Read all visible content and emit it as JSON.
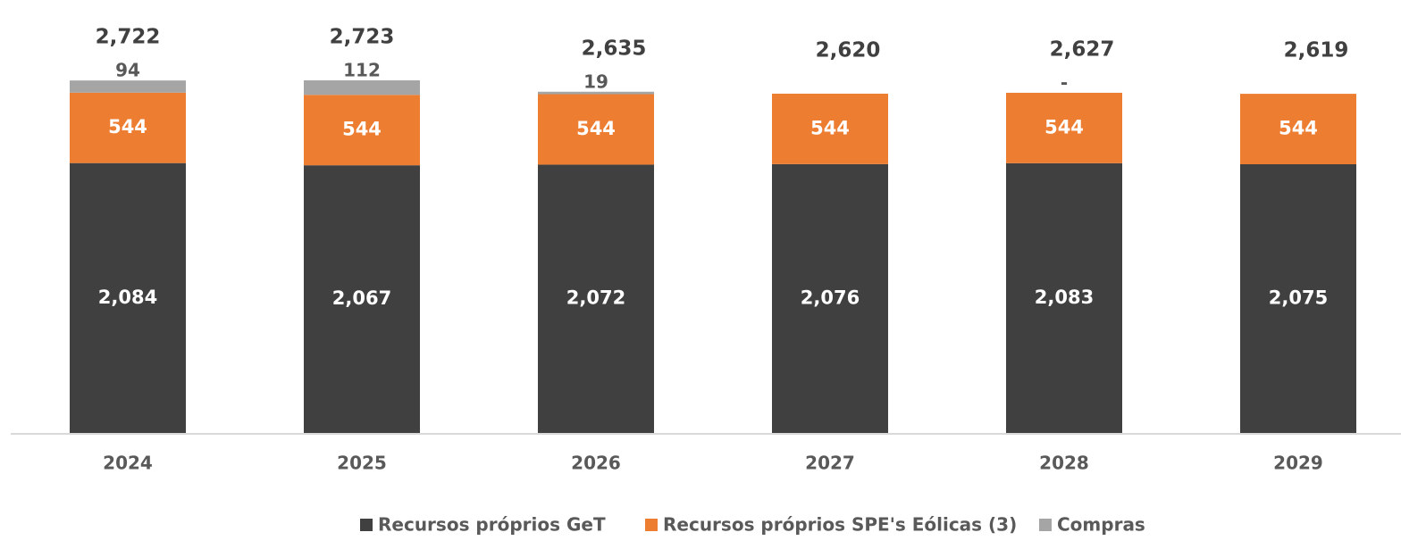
{
  "chart_data": {
    "type": "stacked_bar",
    "categories": [
      "2024",
      "2025",
      "2026",
      "2027",
      "2028",
      "2029"
    ],
    "series": [
      {
        "name": "Recursos próprios GeT",
        "color": "#404040",
        "values": [
          2084,
          2067,
          2072,
          2076,
          2083,
          2075
        ],
        "value_labels": [
          "2,084",
          "2,067",
          "2,072",
          "2,076",
          "2,083",
          "2,075"
        ]
      },
      {
        "name": "Recursos próprios SPE's Eólicas (3)",
        "color": "#ed7d31",
        "values": [
          544,
          544,
          544,
          544,
          544,
          544
        ]
      },
      {
        "name": "Compras",
        "color": "#a5a5a5",
        "values": [
          94,
          112,
          19,
          0,
          0,
          0
        ],
        "value_labels": [
          "94",
          "112",
          "19",
          null,
          "-",
          null
        ]
      }
    ],
    "totals": [
      2722,
      2723,
      2635,
      2620,
      2627,
      2619
    ],
    "total_labels": [
      "2,722",
      "2,723",
      "2,635",
      "2,620",
      "2,627",
      "2,619"
    ]
  }
}
